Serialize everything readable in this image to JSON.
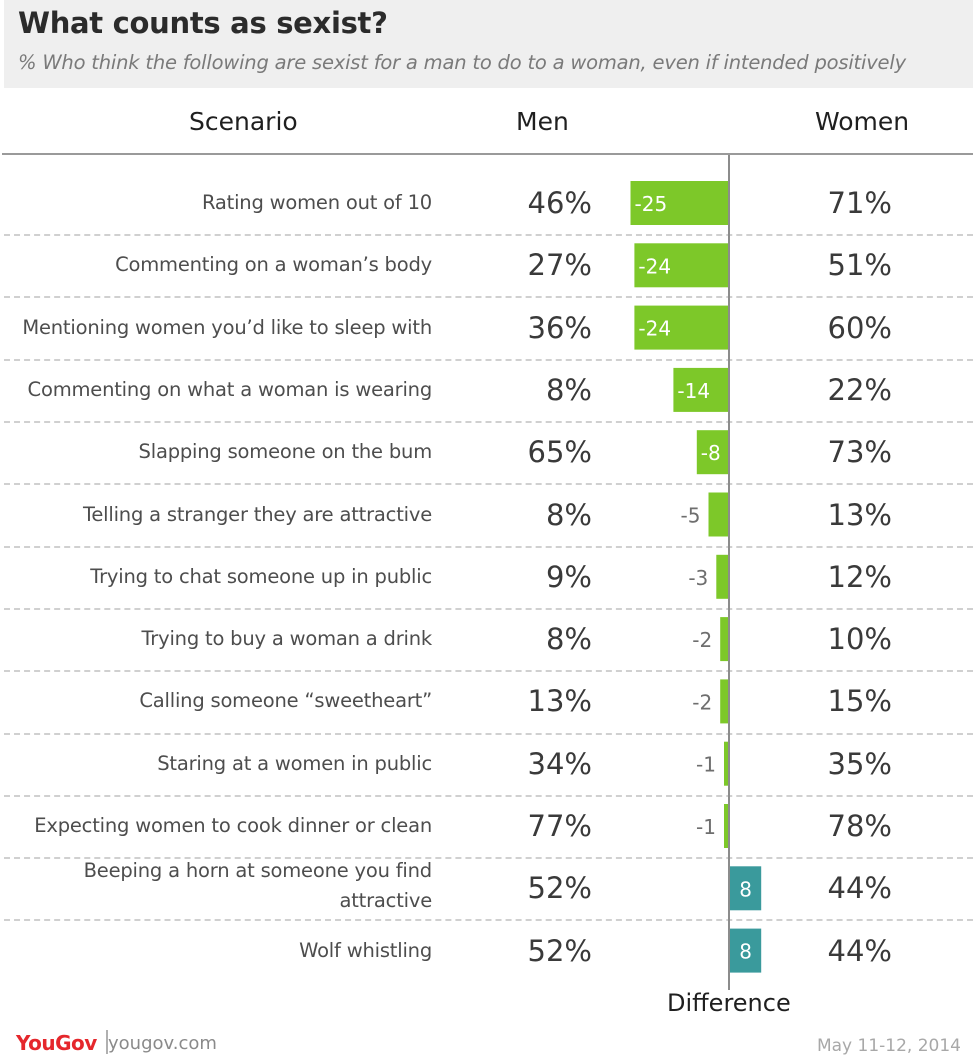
{
  "header": {
    "title": "What counts as sexist?",
    "subtitle": "% Who think the following are sexist for a man to do to a woman, even if intended positively"
  },
  "columns": {
    "scenario": "Scenario",
    "men": "Men",
    "women": "Women"
  },
  "footer": {
    "logo": "YouGov",
    "site": "yougov.com",
    "date": "May 11-12, 2014"
  },
  "chart_data": {
    "type": "bar",
    "title": "What counts as sexist?",
    "subtitle": "% Who think the following are sexist for a man to do to a woman, even if intended positively",
    "xlabel": "Difference",
    "colors": {
      "negative": "#7dc829",
      "positive": "#3a9a9c"
    },
    "rows": [
      {
        "scenario": "Rating women out of 10",
        "men": "46%",
        "women": "71%",
        "difference": -25
      },
      {
        "scenario": "Commenting on a woman’s body",
        "men": "27%",
        "women": "51%",
        "difference": -24
      },
      {
        "scenario": "Mentioning women you’d like to sleep with",
        "men": "36%",
        "women": "60%",
        "difference": -24
      },
      {
        "scenario": "Commenting on what a woman is wearing",
        "men": "8%",
        "women": "22%",
        "difference": -14
      },
      {
        "scenario": "Slapping someone on the bum",
        "men": "65%",
        "women": "73%",
        "difference": -8
      },
      {
        "scenario": "Telling a stranger they are attractive",
        "men": "8%",
        "women": "13%",
        "difference": -5
      },
      {
        "scenario": "Trying to chat someone up in public",
        "men": "9%",
        "women": "12%",
        "difference": -3
      },
      {
        "scenario": "Trying to buy a woman a drink",
        "men": "8%",
        "women": "10%",
        "difference": -2
      },
      {
        "scenario": "Calling someone “sweetheart”",
        "men": "13%",
        "women": "15%",
        "difference": -2
      },
      {
        "scenario": "Staring at a women in public",
        "men": "34%",
        "women": "35%",
        "difference": -1
      },
      {
        "scenario": "Expecting women to cook dinner or clean",
        "men": "77%",
        "women": "78%",
        "difference": -1
      },
      {
        "scenario": "Beeping a horn at someone you find attractive",
        "men": "52%",
        "women": "44%",
        "difference": 8
      },
      {
        "scenario": "Wolf whistling",
        "men": "52%",
        "women": "44%",
        "difference": 8
      }
    ]
  }
}
